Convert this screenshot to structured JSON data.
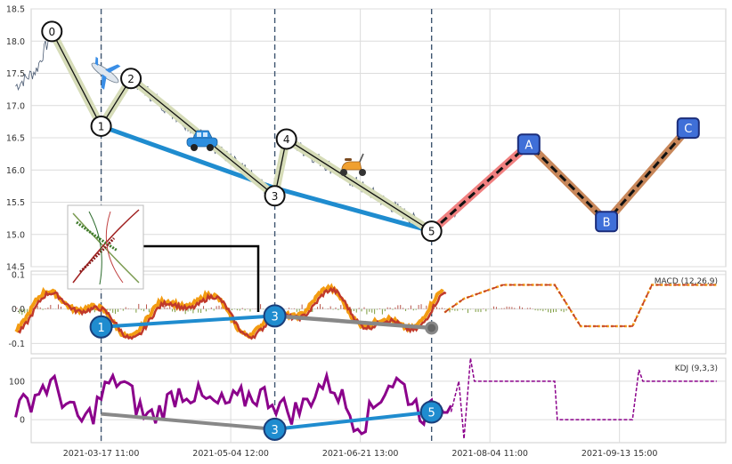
{
  "chart_data": {
    "type": "line",
    "panels": [
      {
        "name": "price",
        "y_ticks": [
          "14.5",
          "15.0",
          "15.5",
          "16.0",
          "16.5",
          "17.0",
          "17.5",
          "18.0",
          "18.5"
        ],
        "ylim": [
          14.5,
          18.5
        ],
        "wave_points": [
          {
            "label": "0",
            "t": 0.12,
            "value": 18.15
          },
          {
            "label": "1",
            "t": 0.5,
            "value": 16.68
          },
          {
            "label": "2",
            "t": 0.73,
            "value": 17.42
          },
          {
            "label": "3",
            "t": 1.84,
            "value": 15.6
          },
          {
            "label": "4",
            "t": 1.93,
            "value": 16.48
          },
          {
            "label": "5",
            "t": 3.05,
            "value": 15.05
          }
        ],
        "projection_points": [
          {
            "label": "A",
            "t": 3.8,
            "value": 16.4
          },
          {
            "label": "B",
            "t": 4.4,
            "value": 15.2
          },
          {
            "label": "C",
            "t": 5.03,
            "value": 16.65
          }
        ],
        "trend_line": [
          {
            "t": 0.5,
            "value": 16.68
          },
          {
            "t": 1.84,
            "value": 15.72
          },
          {
            "t": 3.05,
            "value": 15.05
          }
        ],
        "icons": [
          "airplane-icon",
          "car-icon",
          "scooter-icon",
          "pattern-thumbnail"
        ]
      },
      {
        "name": "macd",
        "label": "MACD (12,26,9)",
        "y_ticks": [
          "-0.1",
          "0.0",
          "0.1"
        ],
        "ylim": [
          -0.13,
          0.11
        ],
        "points": [
          {
            "label": "1",
            "t": 0.5,
            "value": -0.052
          },
          {
            "label": "3",
            "t": 1.84,
            "value": -0.02
          },
          {
            "label": "",
            "t": 3.05,
            "value": -0.055
          }
        ]
      },
      {
        "name": "kdj",
        "label": "KDJ (9,3,3)",
        "y_ticks": [
          "0",
          "100"
        ],
        "ylim": [
          -60,
          160
        ],
        "points": [
          {
            "label": "",
            "t": 0.5,
            "value": 15
          },
          {
            "label": "3",
            "t": 1.84,
            "value": -25
          },
          {
            "label": "5",
            "t": 3.05,
            "value": 20
          }
        ]
      }
    ],
    "x_ticks": [
      "2021-03-17 11:00",
      "2021-05-04 12:00",
      "2021-06-21 13:00",
      "2021-08-04 11:00",
      "2021-09-13 15:00"
    ],
    "x_tick_positions": [
      0.5,
      1.5,
      2.5,
      3.5,
      4.5
    ],
    "xlim": [
      -0.04,
      5.32
    ],
    "vertical_markers": [
      0.5,
      1.84,
      3.05
    ],
    "grid": true,
    "colors": {
      "price_line": "#4a5a72",
      "trend": "#1f8ccf",
      "zigzag_band": "#d6dcb8",
      "projection_band_1": "#f08080",
      "projection_band_2": "#c8875a",
      "marker_fill": "#3f6fd8",
      "macd_line_1": "#f39c12",
      "macd_line_2": "#c0392b",
      "kdj_line": "#8b008b",
      "gray_line": "#888888"
    }
  }
}
